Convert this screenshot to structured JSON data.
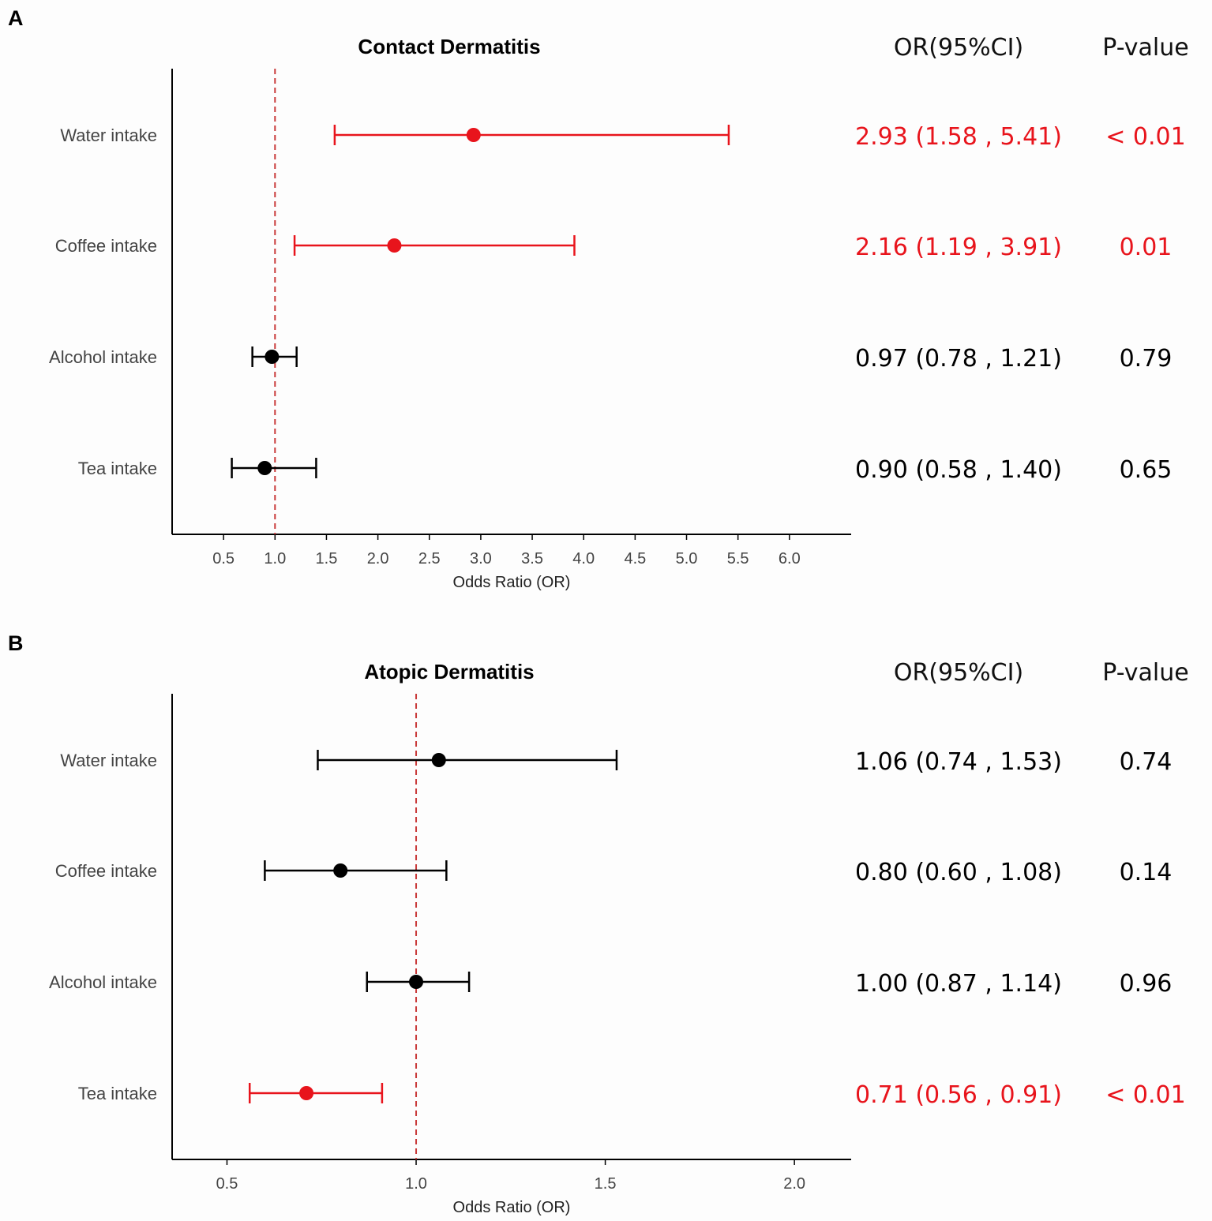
{
  "colors": {
    "significant": "#e8141c",
    "normal": "#000000",
    "reference": "#c93a3a"
  },
  "table_headers": {
    "or_ci": "OR(95%CI)",
    "p_value": "P-value"
  },
  "chart_data": [
    {
      "type": "forest",
      "panel": "A",
      "title": "Contact Dermatitis",
      "xlabel": "Odds Ratio (OR)",
      "reference_value": 1.0,
      "xlim": [
        0.0,
        6.6
      ],
      "xticks": [
        0.5,
        1.0,
        1.5,
        2.0,
        2.5,
        3.0,
        3.5,
        4.0,
        4.5,
        5.0,
        5.5,
        6.0
      ],
      "xtick_labels": [
        "0.5",
        "1.0",
        "1.5",
        "2.0",
        "2.5",
        "3.0",
        "3.5",
        "4.0",
        "4.5",
        "5.0",
        "5.5",
        "6.0"
      ],
      "rows": [
        {
          "label": "Water intake",
          "or": 2.93,
          "lower": 1.58,
          "upper": 5.41,
          "or_ci_text": "2.93 (1.58 , 5.41)",
          "p_text": "< 0.01",
          "significant": true
        },
        {
          "label": "Coffee intake",
          "or": 2.16,
          "lower": 1.19,
          "upper": 3.91,
          "or_ci_text": "2.16 (1.19 , 3.91)",
          "p_text": "0.01",
          "significant": true
        },
        {
          "label": "Alcohol intake",
          "or": 0.97,
          "lower": 0.78,
          "upper": 1.21,
          "or_ci_text": "0.97 (0.78 , 1.21)",
          "p_text": "0.79",
          "significant": false
        },
        {
          "label": "Tea intake",
          "or": 0.9,
          "lower": 0.58,
          "upper": 1.4,
          "or_ci_text": "0.90 (0.58 , 1.40)",
          "p_text": "0.65",
          "significant": false
        }
      ]
    },
    {
      "type": "forest",
      "panel": "B",
      "title": "Atopic Dermatitis",
      "xlabel": "Odds Ratio (OR)",
      "reference_value": 1.0,
      "xlim": [
        0.355,
        2.15
      ],
      "xticks": [
        0.5,
        1.0,
        1.5,
        2.0
      ],
      "xtick_labels": [
        "0.5",
        "1.0",
        "1.5",
        "2.0"
      ],
      "rows": [
        {
          "label": "Water intake",
          "or": 1.06,
          "lower": 0.74,
          "upper": 1.53,
          "or_ci_text": "1.06 (0.74 , 1.53)",
          "p_text": "0.74",
          "significant": false
        },
        {
          "label": "Coffee intake",
          "or": 0.8,
          "lower": 0.6,
          "upper": 1.08,
          "or_ci_text": "0.80 (0.60 , 1.08)",
          "p_text": "0.14",
          "significant": false
        },
        {
          "label": "Alcohol intake",
          "or": 1.0,
          "lower": 0.87,
          "upper": 1.14,
          "or_ci_text": "1.00 (0.87 , 1.14)",
          "p_text": "0.96",
          "significant": false
        },
        {
          "label": "Tea intake",
          "or": 0.71,
          "lower": 0.56,
          "upper": 0.91,
          "or_ci_text": "0.71 (0.56 , 0.91)",
          "p_text": "< 0.01",
          "significant": true
        }
      ]
    }
  ]
}
